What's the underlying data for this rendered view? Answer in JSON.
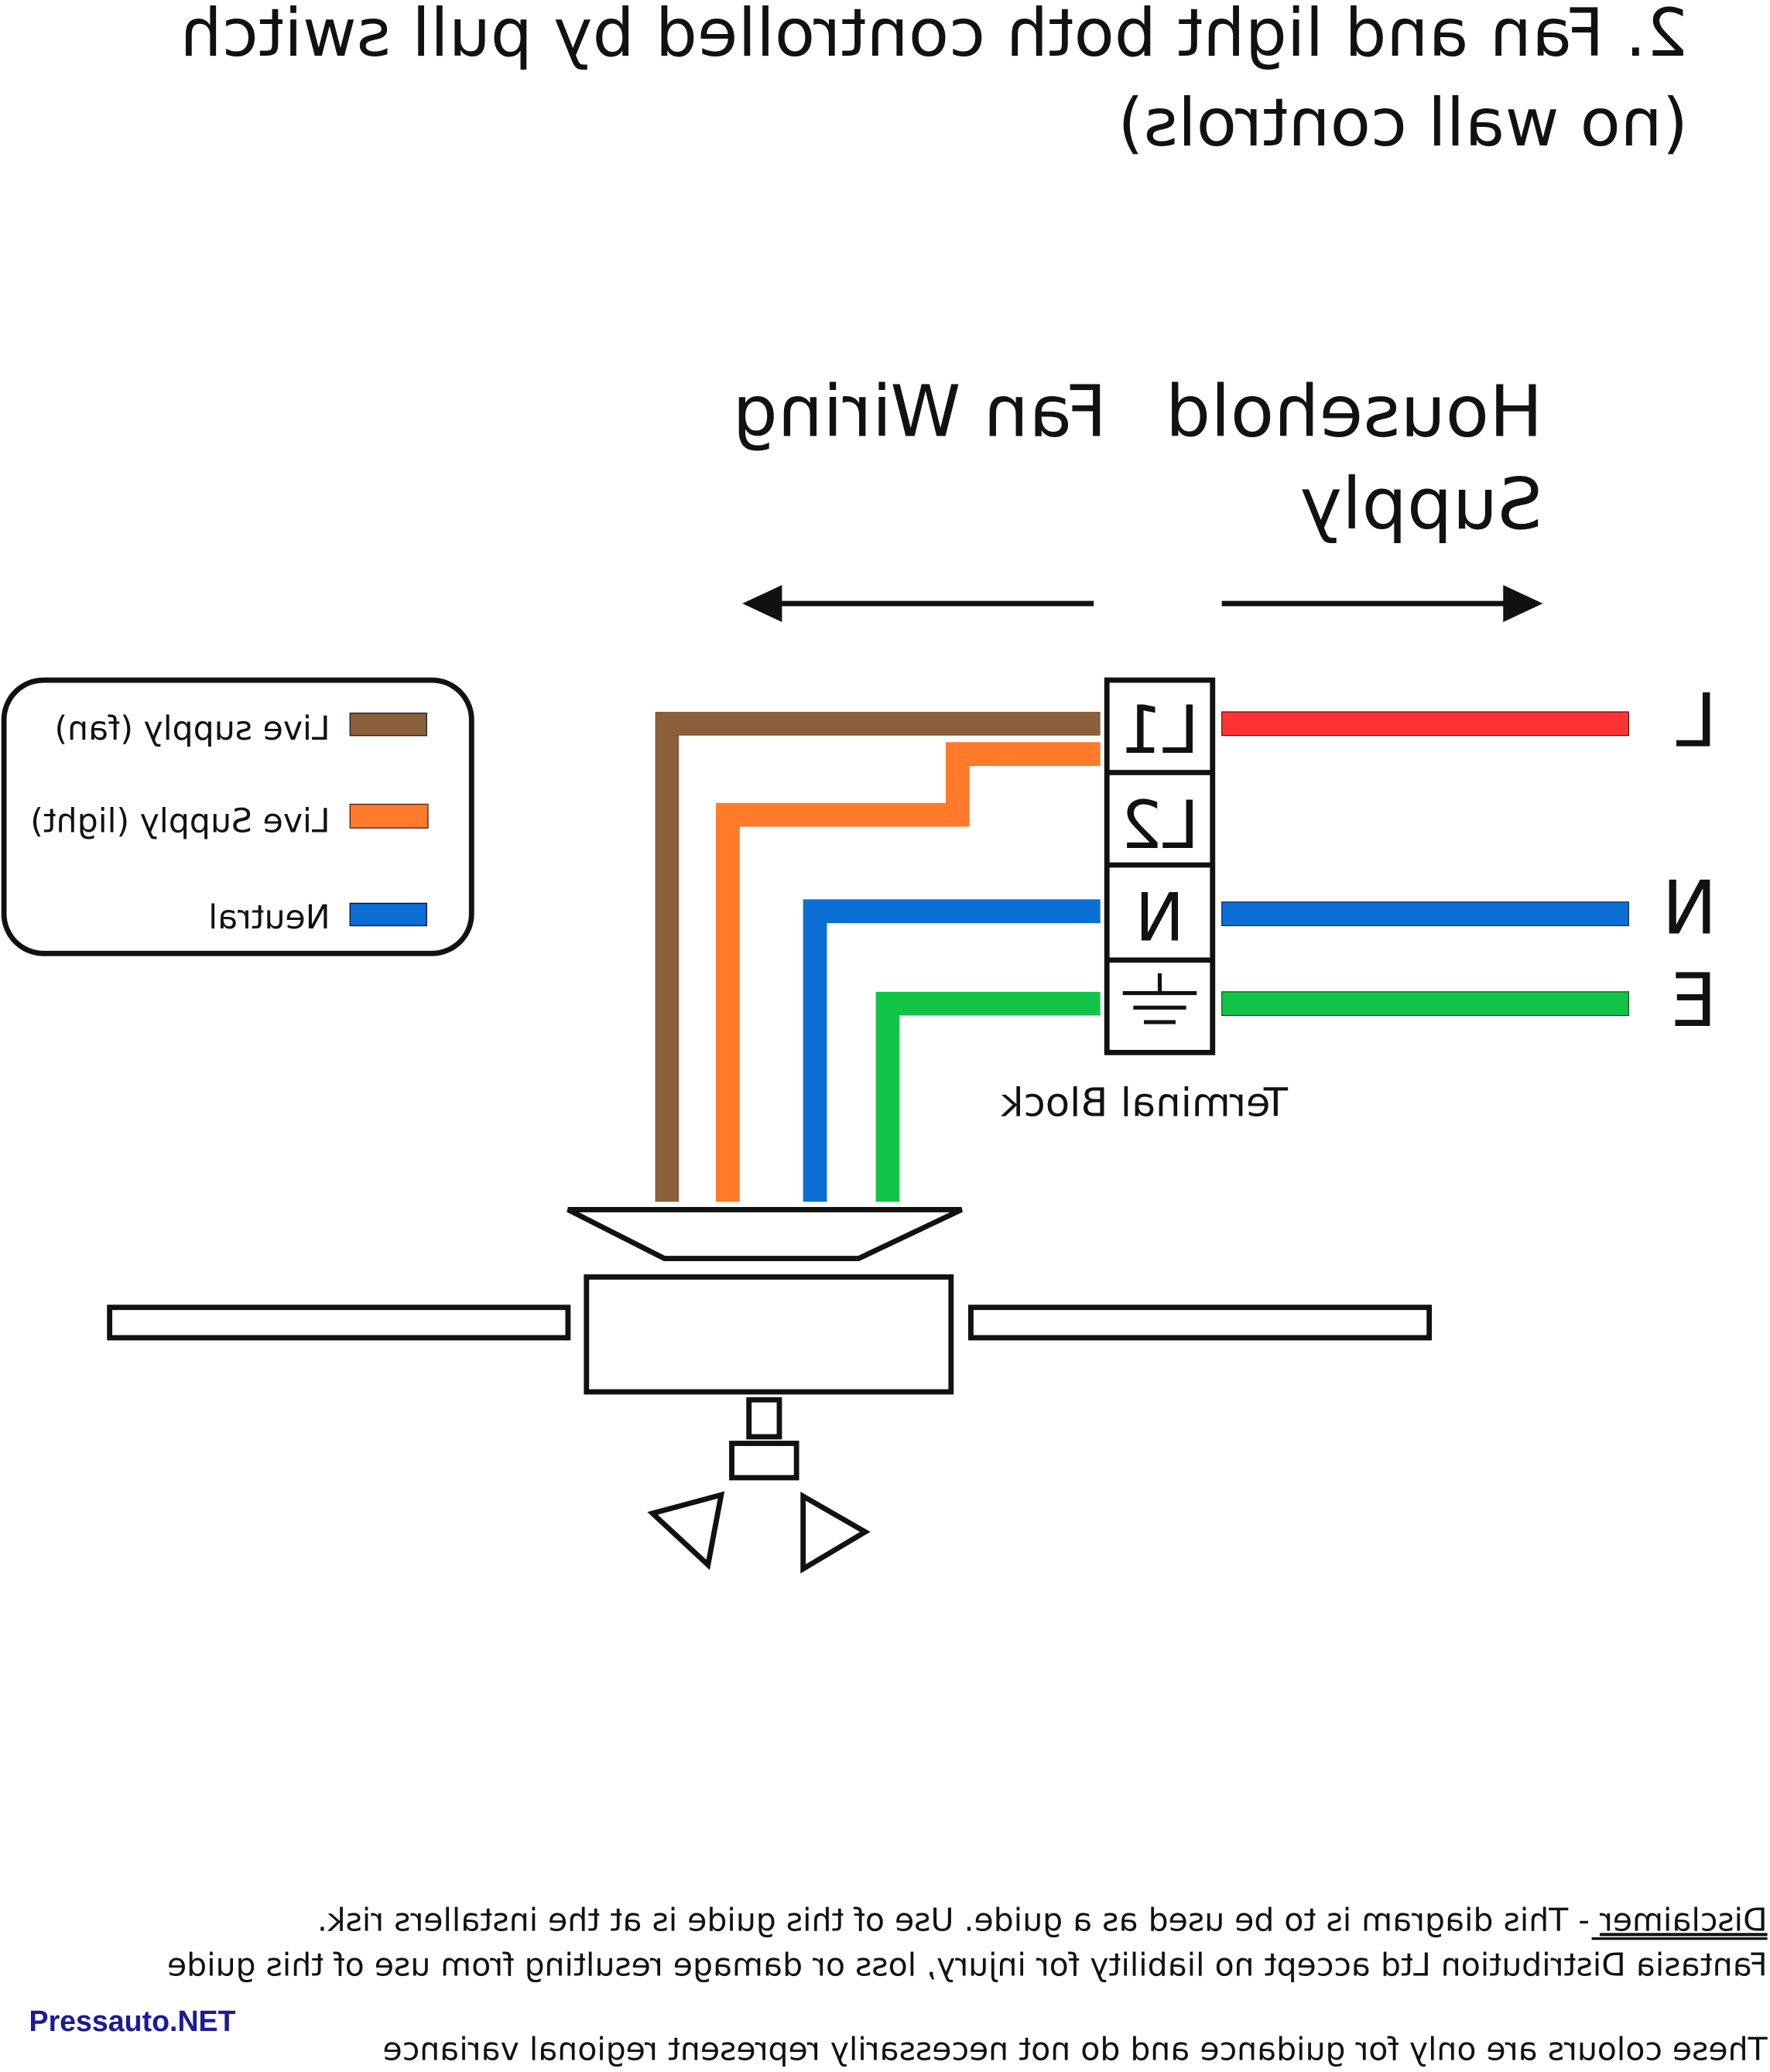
{
  "title": {
    "line1": "2. Fan and light both controlled by pull switch",
    "line2": "(no wall controls)"
  },
  "headings": {
    "household_line1": "Household",
    "household_line2": "Supply",
    "fan_wiring": "Fan Wiring"
  },
  "terminal_block": {
    "label": "Terminal Block",
    "terminals": [
      "L1",
      "L2",
      "N"
    ],
    "earth_icon": "ground-symbol-icon"
  },
  "supply_labels": [
    "L",
    "N",
    "E"
  ],
  "legend": {
    "items": [
      {
        "label": "Live supply (fan)",
        "color": "#8B5E3C"
      },
      {
        "label": "Live Supply (light)",
        "color": "#FF7A2A"
      },
      {
        "label": "Neutral",
        "color": "#0A6ED4"
      }
    ]
  },
  "wire_colors": {
    "live_fan": "#8B5E3C",
    "live_light": "#FF7A2A",
    "neutral": "#0A6ED4",
    "earth": "#11C448",
    "supply_live": "#FF3333"
  },
  "disclaimer": {
    "heading": "Disclaimer",
    "line1_rest": " - This diagram is to be used as a guide.  Use of this guide is at the installers risk.",
    "line2": "Fantasia Distribution Ltd accept no liability for injury, loss or damage resulting from use of this guide",
    "line3": "These colours are only for guidance and do not necessarily represent regional variance"
  },
  "watermark": "Pressauto.NET",
  "mirrored": true
}
